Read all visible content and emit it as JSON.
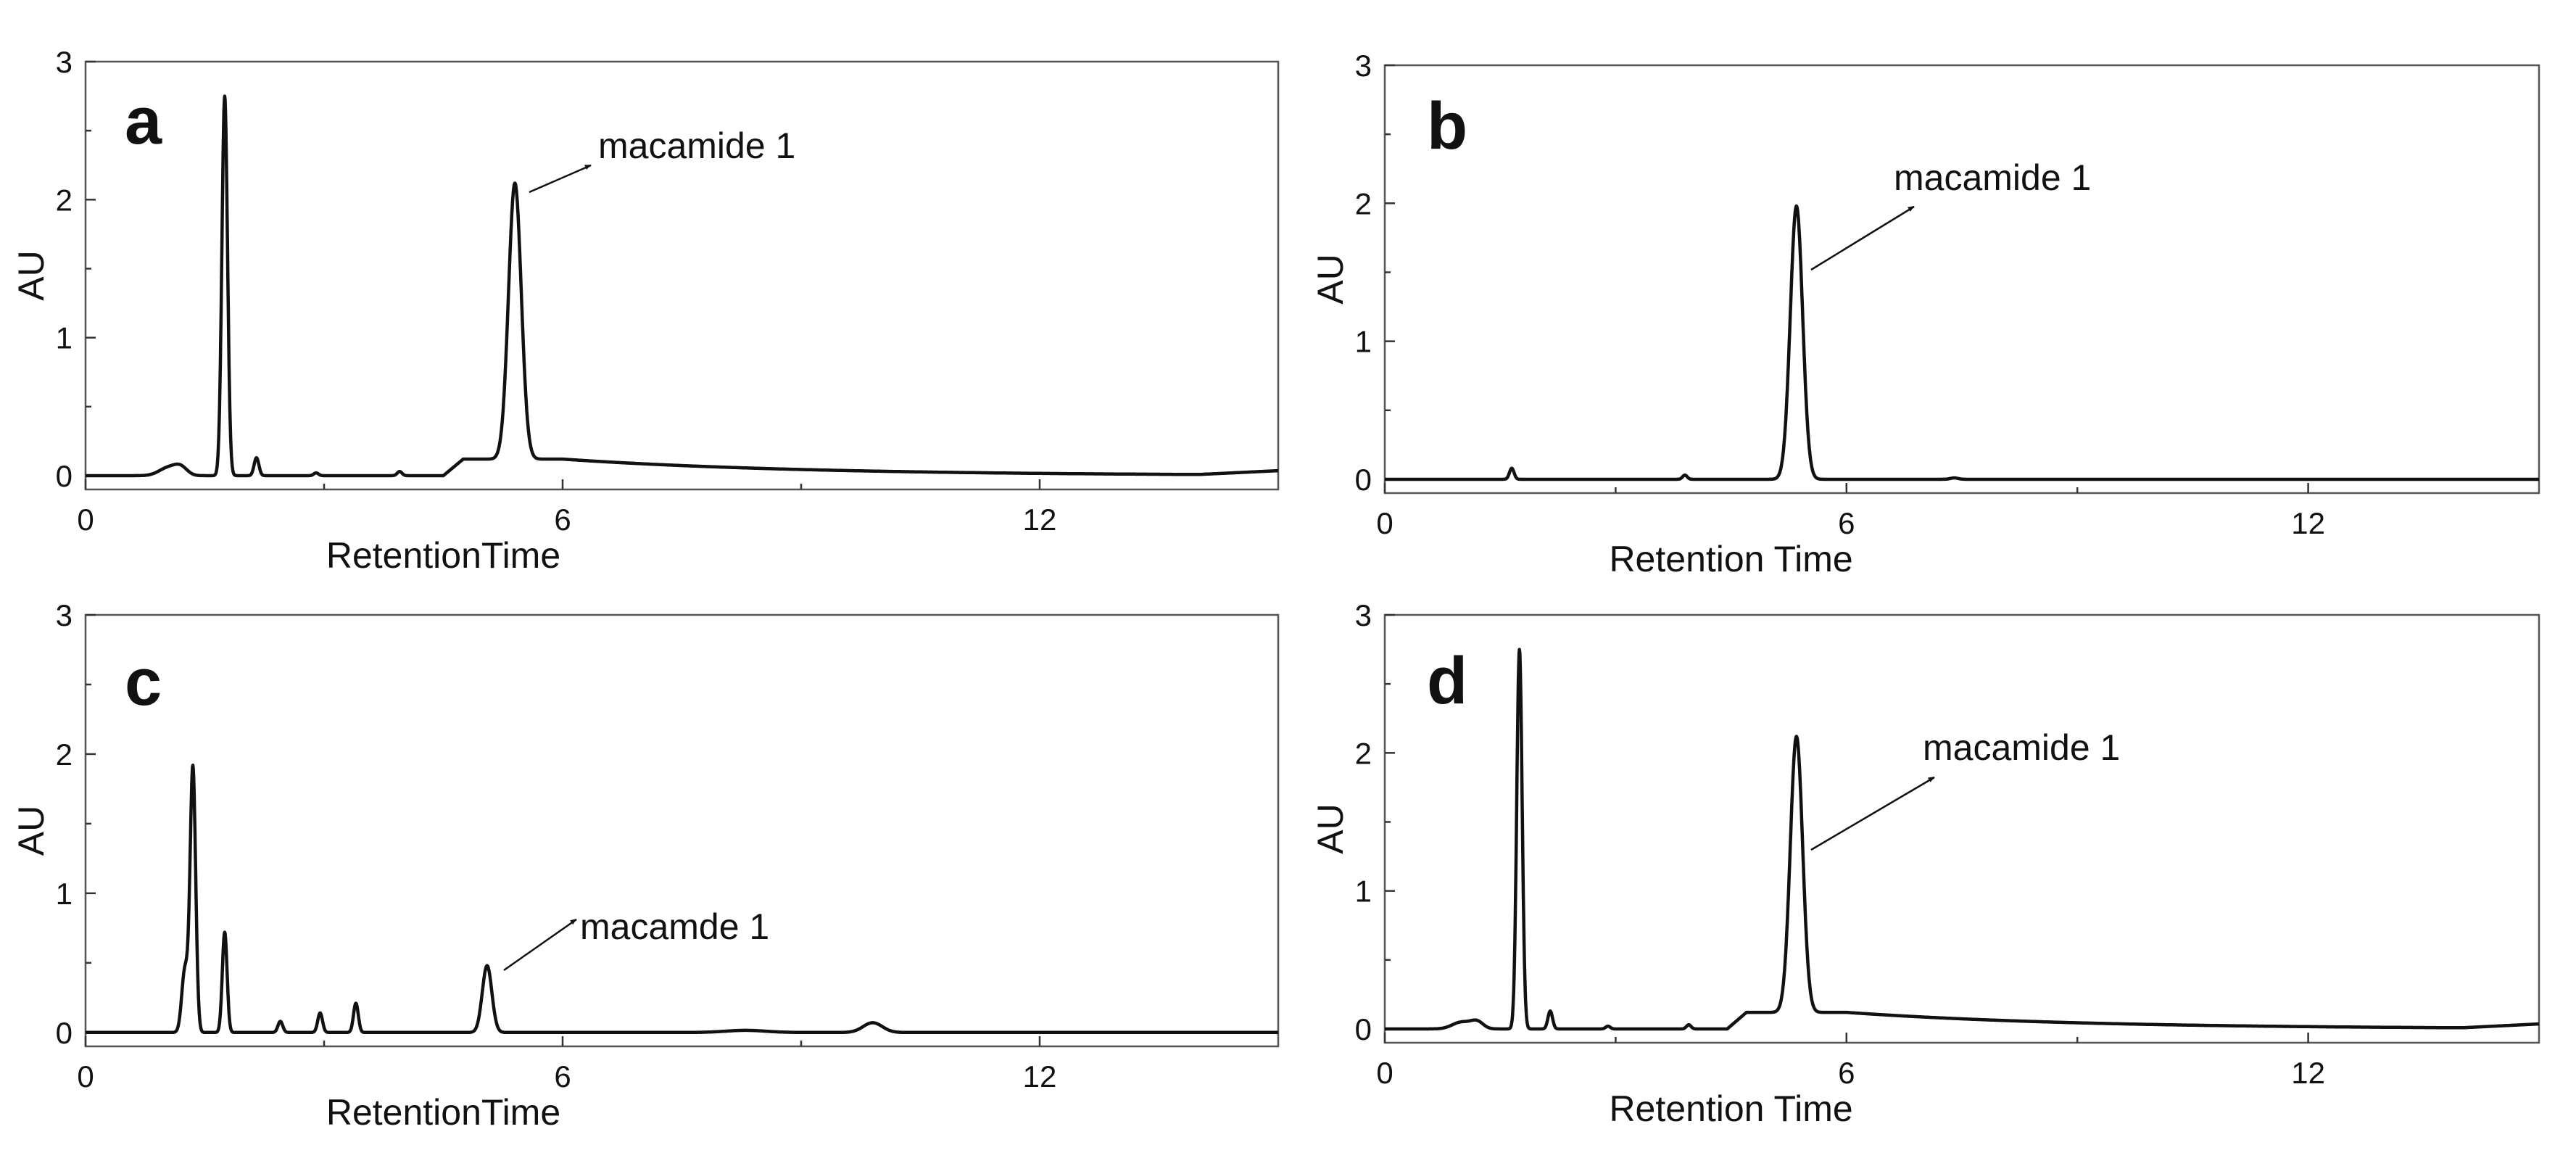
{
  "chart_data": [
    {
      "type": "line",
      "panel_label": "a",
      "xlabel": "RetentionTime",
      "ylabel": "AU",
      "xlim": [
        0,
        15
      ],
      "ylim": [
        -0.1,
        3
      ],
      "x_ticks": [
        0,
        6,
        12
      ],
      "y_ticks": [
        0,
        1,
        2,
        3
      ],
      "annotation": {
        "text": "macamide 1",
        "peak_x": 5.4,
        "peak_y": 2.15
      },
      "series": [
        {
          "name": "chromatogram",
          "baseline": 0.0,
          "peaks": [
            {
              "x": 1.05,
              "h": 0.06,
              "w": 0.12
            },
            {
              "x": 1.2,
              "h": 0.05,
              "w": 0.08
            },
            {
              "x": 1.75,
              "h": 2.75,
              "w": 0.035
            },
            {
              "x": 2.15,
              "h": 0.13,
              "w": 0.03
            },
            {
              "x": 2.9,
              "h": 0.02,
              "w": 0.03
            },
            {
              "x": 3.95,
              "h": 0.03,
              "w": 0.03
            },
            {
              "x": 5.4,
              "h": 2.0,
              "w": 0.08
            }
          ],
          "hump": {
            "start": 4.5,
            "rise_end": 4.75,
            "plateau": 0.12,
            "decay_rate": 0.33,
            "tail_level": 0.0,
            "end_rise": 0.03
          }
        }
      ]
    },
    {
      "type": "line",
      "panel_label": "b",
      "xlabel": "Retention Time",
      "ylabel": "AU",
      "xlim": [
        0,
        15
      ],
      "ylim": [
        -0.1,
        3
      ],
      "x_ticks": [
        0,
        6,
        12
      ],
      "y_ticks": [
        0,
        1,
        2,
        3
      ],
      "annotation": {
        "text": "macamide 1",
        "peak_x": 5.35,
        "peak_y": 1.98
      },
      "series": [
        {
          "name": "chromatogram",
          "baseline": 0.0,
          "peaks": [
            {
              "x": 1.65,
              "h": 0.08,
              "w": 0.03
            },
            {
              "x": 3.9,
              "h": 0.03,
              "w": 0.03
            },
            {
              "x": 5.35,
              "h": 1.98,
              "w": 0.08
            },
            {
              "x": 7.4,
              "h": 0.01,
              "w": 0.05
            }
          ],
          "hump": null
        }
      ]
    },
    {
      "type": "line",
      "panel_label": "c",
      "xlabel": "RetentionTime",
      "ylabel": "AU",
      "xlim": [
        0,
        15
      ],
      "ylim": [
        -0.1,
        3
      ],
      "x_ticks": [
        0,
        6,
        12
      ],
      "y_ticks": [
        0,
        1,
        2,
        3
      ],
      "annotation": {
        "text": "macamde 1",
        "peak_x": 5.05,
        "peak_y": 0.5
      },
      "series": [
        {
          "name": "chromatogram",
          "baseline": 0.0,
          "peaks": [
            {
              "x": 1.25,
              "h": 0.45,
              "w": 0.04
            },
            {
              "x": 1.35,
              "h": 1.9,
              "w": 0.035
            },
            {
              "x": 1.75,
              "h": 0.72,
              "w": 0.03
            },
            {
              "x": 2.45,
              "h": 0.08,
              "w": 0.03
            },
            {
              "x": 2.95,
              "h": 0.14,
              "w": 0.03
            },
            {
              "x": 3.4,
              "h": 0.21,
              "w": 0.03
            },
            {
              "x": 5.05,
              "h": 0.48,
              "w": 0.06
            },
            {
              "x": 8.3,
              "h": 0.015,
              "w": 0.25
            },
            {
              "x": 9.9,
              "h": 0.07,
              "w": 0.12
            }
          ],
          "hump": null
        }
      ]
    },
    {
      "type": "line",
      "panel_label": "d",
      "xlabel": "Retention Time",
      "ylabel": "AU",
      "xlim": [
        0,
        15
      ],
      "ylim": [
        -0.1,
        3
      ],
      "x_ticks": [
        0,
        6,
        12
      ],
      "y_ticks": [
        0,
        1,
        2,
        3
      ],
      "annotation": {
        "text": "macamide 1",
        "peak_x": 5.35,
        "peak_y": 2.13
      },
      "series": [
        {
          "name": "chromatogram",
          "baseline": 0.0,
          "peaks": [
            {
              "x": 1.0,
              "h": 0.05,
              "w": 0.12
            },
            {
              "x": 1.2,
              "h": 0.05,
              "w": 0.08
            },
            {
              "x": 1.75,
              "h": 2.75,
              "w": 0.035
            },
            {
              "x": 2.15,
              "h": 0.13,
              "w": 0.03
            },
            {
              "x": 2.9,
              "h": 0.02,
              "w": 0.03
            },
            {
              "x": 3.95,
              "h": 0.03,
              "w": 0.03
            },
            {
              "x": 5.35,
              "h": 2.0,
              "w": 0.08
            }
          ],
          "hump": {
            "start": 4.45,
            "rise_end": 4.7,
            "plateau": 0.12,
            "decay_rate": 0.33,
            "tail_level": 0.0,
            "end_rise": 0.03
          }
        }
      ]
    }
  ],
  "colors": {
    "trace": "#111111",
    "frame": "#555555",
    "background": "#ffffff"
  }
}
